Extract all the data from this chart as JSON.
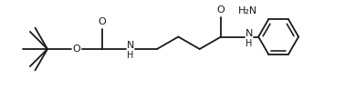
{
  "background_color": "#ffffff",
  "line_color": "#1a1a1a",
  "line_width": 1.3,
  "font_size": 7.5,
  "figsize": [
    3.89,
    1.09
  ],
  "dpi": 100,
  "xlim": [
    0,
    389
  ],
  "ylim": [
    0,
    109
  ]
}
